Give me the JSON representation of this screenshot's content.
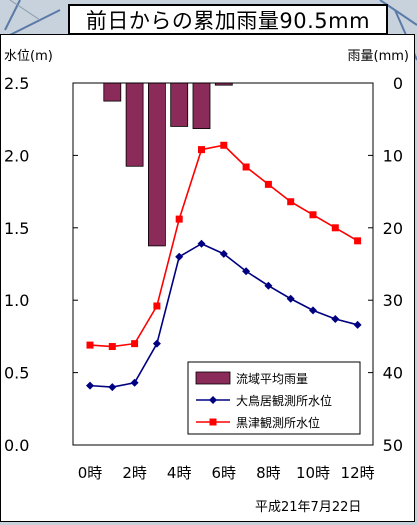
{
  "title": "前日からの累加雨量90.5mm",
  "date_label": "平成21年7月22日",
  "colors": {
    "bar": "#8b2b5a",
    "oshimai": "#000080",
    "kurotsu": "#ff0000"
  },
  "chart_data": {
    "type": "bar+line",
    "x_ticks": [
      "0時",
      "2時",
      "4時",
      "6時",
      "8時",
      "10時",
      "12時"
    ],
    "x": [
      0,
      1,
      2,
      3,
      4,
      5,
      6,
      7,
      8,
      9,
      10,
      11,
      12
    ],
    "left_axis": {
      "label": "水位(m)",
      "min": 0.0,
      "max": 2.5,
      "ticks": [
        "0.0",
        "0.5",
        "1.0",
        "1.5",
        "2.0",
        "2.5"
      ]
    },
    "right_axis": {
      "label": "雨量(mm)",
      "min": 0,
      "max": 50,
      "inverted": true,
      "ticks": [
        "0",
        "10",
        "20",
        "30",
        "40",
        "50"
      ]
    },
    "series": [
      {
        "name": "流域平均雨量",
        "type": "bar",
        "axis": "right",
        "x": [
          1,
          2,
          3,
          4,
          5,
          6
        ],
        "values": [
          2.5,
          11.5,
          22.5,
          6.0,
          6.3,
          0.3
        ]
      },
      {
        "name": "大鳥居観測所水位",
        "type": "line",
        "axis": "left",
        "values": [
          0.41,
          0.4,
          0.43,
          0.7,
          1.3,
          1.39,
          1.32,
          1.2,
          1.1,
          1.01,
          0.93,
          0.87,
          0.83
        ]
      },
      {
        "name": "黒津観測所水位",
        "type": "line",
        "axis": "left",
        "values": [
          0.69,
          0.68,
          0.7,
          0.96,
          1.56,
          2.04,
          2.07,
          1.92,
          1.8,
          1.68,
          1.59,
          1.5,
          1.41
        ]
      }
    ],
    "legend_position": "bottom-right"
  }
}
